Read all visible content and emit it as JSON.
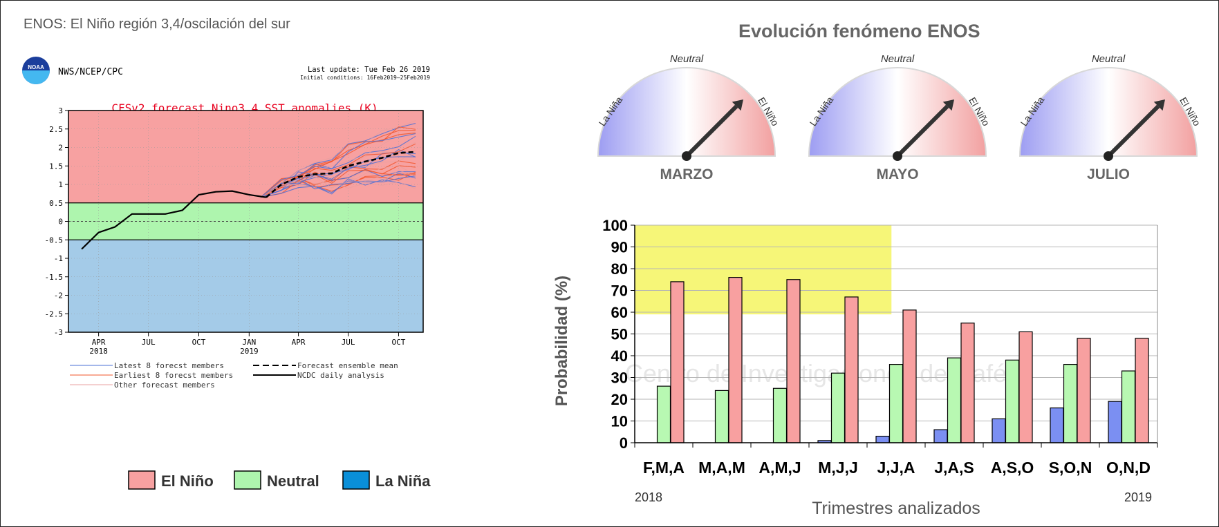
{
  "header": {
    "title": "ENOS: El Niño región 3,4/oscilación del sur"
  },
  "cpc_panel": {
    "agency": "NWS/NCEP/CPC",
    "logo_text": "NOAA",
    "last_update": "Last update: Tue Feb 26 2019",
    "initial_conditions": "Initial conditions: 16Feb2019–25Feb2019",
    "legend": [
      {
        "label": "Latest 8 forecst members",
        "color": "#4a6fd6"
      },
      {
        "label": "Earliest 8 forecst members",
        "color": "#f2552a"
      },
      {
        "label": "Other forecast members",
        "color": "#e8a0a0"
      },
      {
        "label": "Forecast ensemble mean",
        "color": "#000000"
      },
      {
        "label": "NCDC daily analysis",
        "color": "#000000"
      }
    ],
    "regions": [
      {
        "label": "El Niño",
        "color": "#f7a1a1"
      },
      {
        "label": "Neutral",
        "color": "#aef5ae"
      },
      {
        "label": "La Niña",
        "color": "#0a8fd8"
      }
    ]
  },
  "gauges": {
    "title": "Evolución fenómeno ENOS",
    "labels": {
      "left": "La Niña",
      "top": "Neutral",
      "right": "El Niño"
    },
    "items": [
      {
        "month": "MARZO",
        "needle_angle_deg": 45
      },
      {
        "month": "MAYO",
        "needle_angle_deg": 45
      },
      {
        "month": "JULIO",
        "needle_angle_deg": 45
      }
    ]
  },
  "bar_panel": {
    "watermark_text": "Centro de Investigaciones de Café",
    "year_start": "2018",
    "year_end": "2019"
  },
  "chart_data": [
    {
      "type": "line",
      "title": "CFSv2 forecast Nino3.4 SST anomalies (K)",
      "x_ticks": [
        "APR 2018",
        "JUL",
        "OCT",
        "JAN 2019",
        "APR",
        "JUL",
        "OCT"
      ],
      "ylim": [
        -3,
        3
      ],
      "y_ticks": [
        3,
        2.5,
        2,
        1.5,
        1,
        0.5,
        0,
        -0.5,
        -1,
        -1.5,
        -2,
        -2.5,
        -3
      ],
      "bands": [
        {
          "name": "El Niño",
          "range": [
            0.5,
            3
          ]
        },
        {
          "name": "Neutral",
          "range": [
            -0.5,
            0.5
          ]
        },
        {
          "name": "La Niña",
          "range": [
            -3,
            -0.5
          ]
        }
      ],
      "series": [
        {
          "name": "NCDC daily analysis",
          "x": [
            "2018-03",
            "2018-04",
            "2018-05",
            "2018-06",
            "2018-07",
            "2018-08",
            "2018-09",
            "2018-10",
            "2018-11",
            "2018-12",
            "2019-01",
            "2019-02"
          ],
          "values": [
            -0.75,
            -0.3,
            -0.15,
            0.2,
            0.2,
            0.2,
            0.3,
            0.72,
            0.8,
            0.82,
            0.72,
            0.65
          ]
        },
        {
          "name": "Forecast ensemble mean",
          "x": [
            "2019-02",
            "2019-03",
            "2019-04",
            "2019-05",
            "2019-06",
            "2019-07",
            "2019-08",
            "2019-09",
            "2019-10",
            "2019-11"
          ],
          "values": [
            0.65,
            1.0,
            1.2,
            1.28,
            1.3,
            1.5,
            1.62,
            1.72,
            1.85,
            1.88
          ]
        }
      ]
    },
    {
      "type": "bar",
      "categories": [
        "F,M,A",
        "M,A,M",
        "A,M,J",
        "M,J,J",
        "J,J,A",
        "J,A,S",
        "A,S,O",
        "S,O,N",
        "O,N,D"
      ],
      "series": [
        {
          "name": "",
          "color": "#7b8ff2",
          "values": [
            0,
            0,
            0,
            1,
            3,
            6,
            11,
            16,
            19
          ]
        },
        {
          "name": "",
          "color": "#b8f8b2",
          "values": [
            26,
            24,
            25,
            32,
            36,
            39,
            38,
            36,
            33
          ]
        },
        {
          "name": "",
          "color": "#f8a0a0",
          "values": [
            74,
            76,
            75,
            67,
            61,
            55,
            51,
            48,
            48
          ]
        }
      ],
      "ylabel": "Probabilidad (%)",
      "xlabel": "Trimestres  analizados",
      "ylim": [
        0,
        100
      ],
      "y_ticks": [
        0,
        10,
        20,
        30,
        40,
        50,
        60,
        70,
        80,
        90,
        100
      ],
      "highlight": {
        "from_category": "F,M,A",
        "to_category": "J,J,A",
        "y_range": [
          59,
          100
        ],
        "color": "#f5f560"
      },
      "grid": true
    }
  ]
}
